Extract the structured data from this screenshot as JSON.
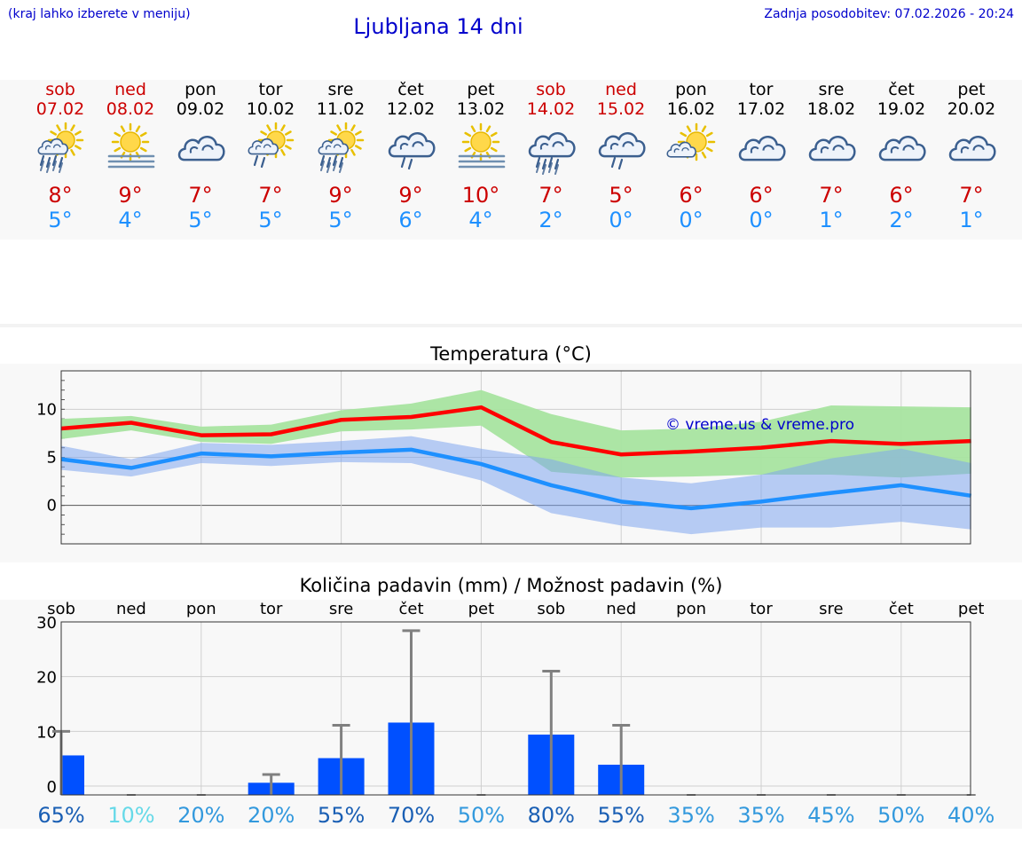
{
  "header": {
    "menu_hint": "(kraj lahko izberete v meniju)",
    "title": "Ljubljana 14 dni",
    "updated": "Zadnja posodobitev: 07.02.2026 - 20:24"
  },
  "days": [
    {
      "name": "sob",
      "date": "07.02",
      "weekend": true,
      "icon": "sun-cloud-rain-icon",
      "tmax": "8°",
      "tmin": "5°"
    },
    {
      "name": "ned",
      "date": "08.02",
      "weekend": true,
      "icon": "sun-fog-icon",
      "tmax": "9°",
      "tmin": "4°"
    },
    {
      "name": "pon",
      "date": "09.02",
      "weekend": false,
      "icon": "cloud-icon",
      "tmax": "7°",
      "tmin": "5°"
    },
    {
      "name": "tor",
      "date": "10.02",
      "weekend": false,
      "icon": "sun-cloud-light-rain-icon",
      "tmax": "7°",
      "tmin": "5°"
    },
    {
      "name": "sre",
      "date": "11.02",
      "weekend": false,
      "icon": "sun-cloud-rain-icon",
      "tmax": "9°",
      "tmin": "5°"
    },
    {
      "name": "čet",
      "date": "12.02",
      "weekend": false,
      "icon": "cloud-light-rain-icon",
      "tmax": "9°",
      "tmin": "6°"
    },
    {
      "name": "pet",
      "date": "13.02",
      "weekend": false,
      "icon": "sun-fog-icon",
      "tmax": "10°",
      "tmin": "4°"
    },
    {
      "name": "sob",
      "date": "14.02",
      "weekend": true,
      "icon": "cloud-rain-icon",
      "tmax": "7°",
      "tmin": "2°"
    },
    {
      "name": "ned",
      "date": "15.02",
      "weekend": true,
      "icon": "cloud-light-rain-icon",
      "tmax": "5°",
      "tmin": "0°"
    },
    {
      "name": "pon",
      "date": "16.02",
      "weekend": false,
      "icon": "sun-cloud-icon",
      "tmax": "6°",
      "tmin": "0°"
    },
    {
      "name": "tor",
      "date": "17.02",
      "weekend": false,
      "icon": "cloud-icon",
      "tmax": "6°",
      "tmin": "0°"
    },
    {
      "name": "sre",
      "date": "18.02",
      "weekend": false,
      "icon": "cloud-icon",
      "tmax": "7°",
      "tmin": "1°"
    },
    {
      "name": "čet",
      "date": "19.02",
      "weekend": false,
      "icon": "cloud-icon",
      "tmax": "6°",
      "tmin": "2°"
    },
    {
      "name": "pet",
      "date": "20.02",
      "weekend": false,
      "icon": "cloud-icon",
      "tmax": "7°",
      "tmin": "1°"
    }
  ],
  "colors": {
    "max_line": "#ff0000",
    "max_band": "#a8e4a0",
    "min_line": "#1e90ff",
    "min_band": "#a9c4f5",
    "bar": "#0050ff",
    "whisker": "#808080",
    "weekend": "#cc0000",
    "link": "#0000cc"
  },
  "chart_data": [
    {
      "type": "line",
      "title": "Temperatura (°C)",
      "watermark": "© vreme.us & vreme.pro",
      "ylim": [
        -4,
        14
      ],
      "yticks": [
        0,
        5,
        10
      ],
      "x": [
        0,
        1,
        2,
        3,
        4,
        5,
        6,
        7,
        8,
        9,
        10,
        11,
        12,
        13
      ],
      "series": [
        {
          "name": "max",
          "values": [
            8.0,
            8.6,
            7.3,
            7.4,
            8.9,
            9.2,
            10.2,
            6.6,
            5.3,
            5.6,
            6.0,
            6.7,
            6.4,
            6.7
          ],
          "band_low": [
            6.9,
            7.8,
            6.6,
            6.4,
            7.7,
            7.9,
            8.3,
            3.5,
            2.9,
            3.0,
            3.2,
            3.2,
            2.9,
            3.3
          ],
          "band_high": [
            9.0,
            9.3,
            8.2,
            8.4,
            9.9,
            10.6,
            12.0,
            9.5,
            7.8,
            8.0,
            8.7,
            10.4,
            10.3,
            10.2
          ]
        },
        {
          "name": "min",
          "values": [
            4.8,
            3.9,
            5.4,
            5.1,
            5.5,
            5.8,
            4.3,
            2.1,
            0.4,
            -0.3,
            0.4,
            1.3,
            2.1,
            1.0
          ],
          "band_low": [
            3.7,
            3.0,
            4.4,
            4.1,
            4.5,
            4.4,
            2.6,
            -0.8,
            -2.1,
            -3.0,
            -2.3,
            -2.3,
            -1.7,
            -2.5
          ],
          "band_high": [
            6.2,
            4.8,
            6.5,
            6.3,
            6.7,
            7.2,
            5.9,
            4.8,
            2.9,
            2.3,
            3.2,
            4.9,
            5.9,
            4.4
          ]
        }
      ]
    },
    {
      "type": "bar",
      "title": "Količina padavin (mm) / Možnost padavin (%)",
      "categories": [
        "sob",
        "ned",
        "pon",
        "tor",
        "sre",
        "čet",
        "pet",
        "sob",
        "ned",
        "pon",
        "tor",
        "sre",
        "čet",
        "pet"
      ],
      "ylim": [
        0,
        30
      ],
      "yticks": [
        0,
        10,
        20,
        30
      ],
      "values": [
        5.6,
        0,
        0,
        0.6,
        5.1,
        11.6,
        0,
        9.4,
        3.9,
        0,
        0,
        0,
        0,
        0
      ],
      "upper": [
        10.0,
        0,
        0,
        2.1,
        11.1,
        28.4,
        0,
        21.0,
        11.1,
        0,
        0,
        0,
        0,
        0
      ],
      "probability": [
        {
          "label": "65%",
          "color": "#1a5fb4"
        },
        {
          "label": "10%",
          "color": "#66d9e8"
        },
        {
          "label": "20%",
          "color": "#3399dd"
        },
        {
          "label": "20%",
          "color": "#3399dd"
        },
        {
          "label": "55%",
          "color": "#1a5fb4"
        },
        {
          "label": "70%",
          "color": "#1a5fb4"
        },
        {
          "label": "50%",
          "color": "#3399dd"
        },
        {
          "label": "80%",
          "color": "#1a5fb4"
        },
        {
          "label": "55%",
          "color": "#1a5fb4"
        },
        {
          "label": "35%",
          "color": "#3399dd"
        },
        {
          "label": "35%",
          "color": "#3399dd"
        },
        {
          "label": "45%",
          "color": "#3399dd"
        },
        {
          "label": "50%",
          "color": "#3399dd"
        },
        {
          "label": "40%",
          "color": "#3399dd"
        }
      ]
    }
  ]
}
